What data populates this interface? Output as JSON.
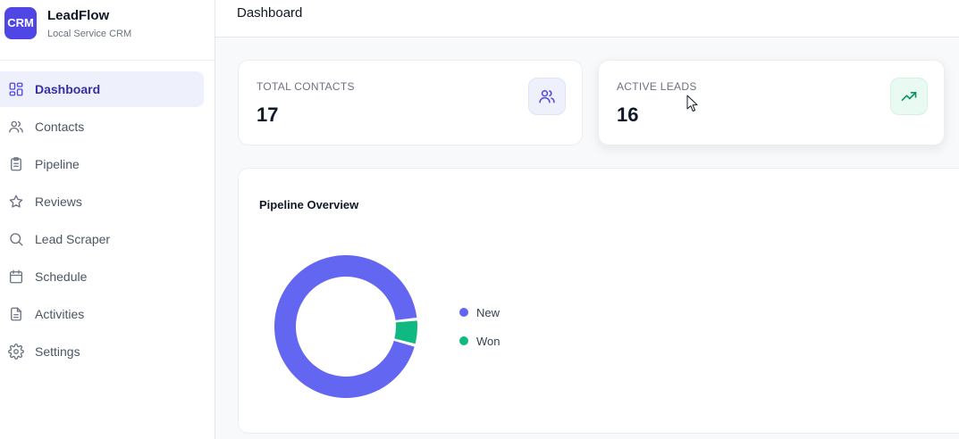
{
  "brand": {
    "logo_text": "CRM",
    "name": "LeadFlow",
    "subtitle": "Local Service CRM"
  },
  "sidebar": {
    "items": [
      {
        "label": "Dashboard",
        "icon": "dashboard-icon",
        "active": true
      },
      {
        "label": "Contacts",
        "icon": "users-icon",
        "active": false
      },
      {
        "label": "Pipeline",
        "icon": "clipboard-icon",
        "active": false
      },
      {
        "label": "Reviews",
        "icon": "star-icon",
        "active": false
      },
      {
        "label": "Lead Scraper",
        "icon": "search-icon",
        "active": false
      },
      {
        "label": "Schedule",
        "icon": "calendar-icon",
        "active": false
      },
      {
        "label": "Activities",
        "icon": "document-icon",
        "active": false
      },
      {
        "label": "Settings",
        "icon": "gear-icon",
        "active": false
      }
    ]
  },
  "header": {
    "title": "Dashboard"
  },
  "stats": [
    {
      "label": "TOTAL CONTACTS",
      "value": "17",
      "icon": "users-icon"
    },
    {
      "label": "ACTIVE LEADS",
      "value": "16",
      "icon": "trending-up-icon"
    }
  ],
  "pipeline": {
    "title": "Pipeline Overview"
  },
  "chart_data": {
    "type": "pie",
    "title": "Pipeline Overview",
    "donut": true,
    "categories": [
      "New",
      "Won"
    ],
    "values": [
      16,
      1
    ],
    "colors": [
      "#6366f1",
      "#10b981"
    ],
    "legend": "right"
  },
  "colors": {
    "accent": "#4f46e5",
    "new": "#6366f1",
    "won": "#10b981"
  }
}
